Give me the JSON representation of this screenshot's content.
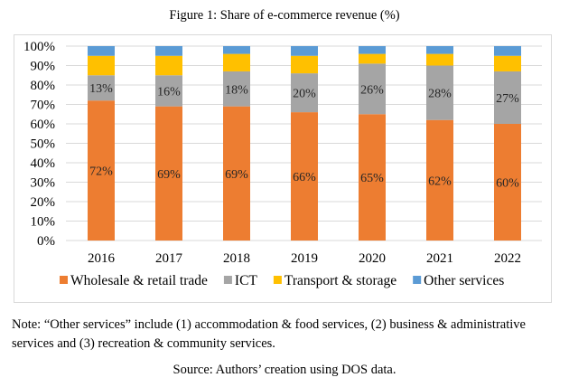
{
  "title": "Figure 1: Share of e-commerce revenue (%)",
  "note": "Note: “Other services” include (1) accommodation & food services, (2) business & administrative services and (3) recreation & community services.",
  "source": "Source: Authors’ creation using DOS data.",
  "chart_data": {
    "type": "bar",
    "stacked": true,
    "title": "Figure 1: Share of e-commerce revenue (%)",
    "xlabel": "",
    "ylabel": "",
    "ylim": [
      0,
      100
    ],
    "yticks": [
      "0%",
      "10%",
      "20%",
      "30%",
      "40%",
      "50%",
      "60%",
      "70%",
      "80%",
      "90%",
      "100%"
    ],
    "grid": true,
    "legend": "bottom",
    "categories": [
      "2016",
      "2017",
      "2018",
      "2019",
      "2020",
      "2021",
      "2022"
    ],
    "series": [
      {
        "name": "Wholesale & retail trade",
        "color": "#ED7D31",
        "values": [
          72,
          69,
          69,
          66,
          65,
          62,
          60
        ],
        "labels": [
          "72%",
          "69%",
          "69%",
          "66%",
          "65%",
          "62%",
          "60%"
        ]
      },
      {
        "name": "ICT",
        "color": "#A5A5A5",
        "values": [
          13,
          16,
          18,
          20,
          26,
          28,
          27
        ],
        "labels": [
          "13%",
          "16%",
          "18%",
          "20%",
          "26%",
          "28%",
          "27%"
        ]
      },
      {
        "name": "Transport & storage",
        "color": "#FFC000",
        "values": [
          10,
          10,
          9,
          9,
          5,
          6,
          8
        ]
      },
      {
        "name": "Other services",
        "color": "#5B9BD5",
        "values": [
          5,
          5,
          4,
          5,
          4,
          4,
          5
        ]
      }
    ]
  }
}
